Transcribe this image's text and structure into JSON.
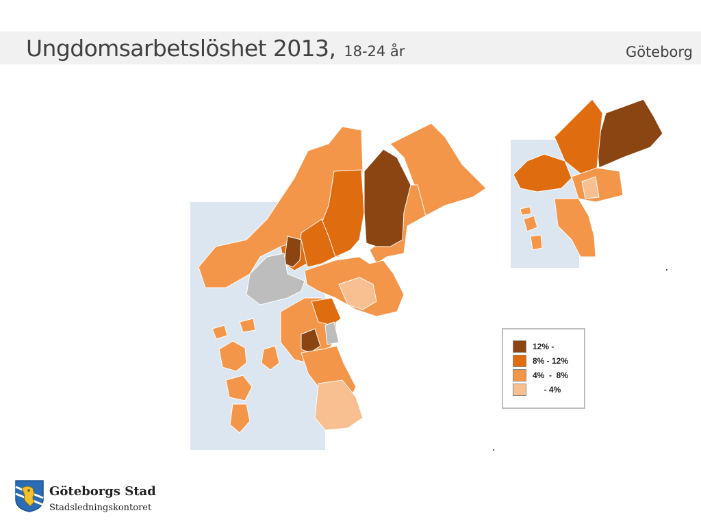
{
  "header": {
    "title": "Ungdomsarbetslöshet 2013,",
    "subtitle": "18-24 år",
    "city": "Göteborg"
  },
  "legend": {
    "items": [
      {
        "label": "12% -",
        "color": "#8b4513"
      },
      {
        "label": "8% - 12%",
        "color": "#e06c10"
      },
      {
        "label": "4%  -  8%",
        "color": "#f4964a"
      },
      {
        "label": "     - 4%",
        "color": "#f8c090"
      }
    ]
  },
  "colors": {
    "water": "#dce6f0",
    "no_data": "#bdbdbd",
    "border": "#ffffff"
  },
  "logo": {
    "name": "Göteborgs Stad",
    "department": "Stadsledningskontoret",
    "icon": "goteborg-lion-crest-icon"
  }
}
